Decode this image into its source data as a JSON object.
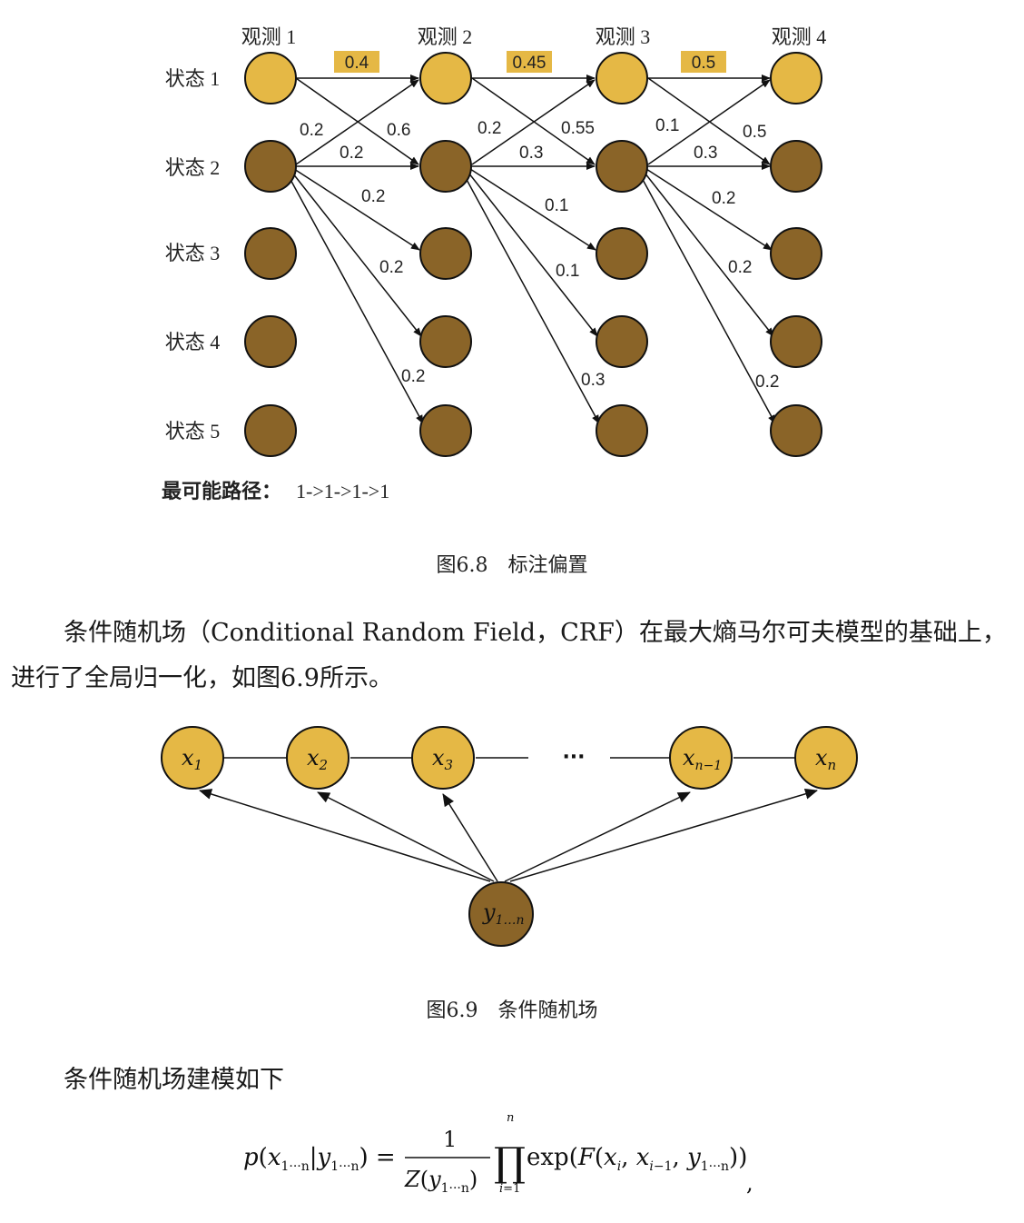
{
  "figure_6_8": {
    "observations": [
      "观测 1",
      "观测 2",
      "观测 3",
      "观测 4"
    ],
    "states": [
      "状态 1",
      "状态 2",
      "状态 3",
      "状态 4",
      "状态 5"
    ],
    "highlight_labels": [
      "0.4",
      "0.45",
      "0.5"
    ],
    "edge_labels_col1": [
      "0.2",
      "0.6",
      "0.2",
      "0.2",
      "0.2",
      "0.2"
    ],
    "edge_labels_col2": [
      "0.2",
      "0.55",
      "0.3",
      "0.1",
      "0.1",
      "0.3"
    ],
    "edge_labels_col3": [
      "0.1",
      "0.5",
      "0.3",
      "0.2",
      "0.2",
      "0.2"
    ],
    "path_label": "最可能路径：",
    "path_value": "1->1->1->1",
    "caption": "图6.8　标注偏置",
    "colors": {
      "gold": "#e5b845",
      "brown": "#8a6428",
      "highlight": "#e5b845"
    }
  },
  "paragraph_1": "条件随机场（Conditional Random Field，CRF）在最大熵马尔可夫模型的基础上，进行了全局归一化，如图6.9所示。",
  "figure_6_9": {
    "x_nodes": [
      "x1",
      "x2",
      "x3",
      "xn-1",
      "xn"
    ],
    "ellipsis": "···",
    "y_node": "y1...n",
    "caption": "图6.9　条件随机场"
  },
  "paragraph_2": "条件随机场建模如下"
}
